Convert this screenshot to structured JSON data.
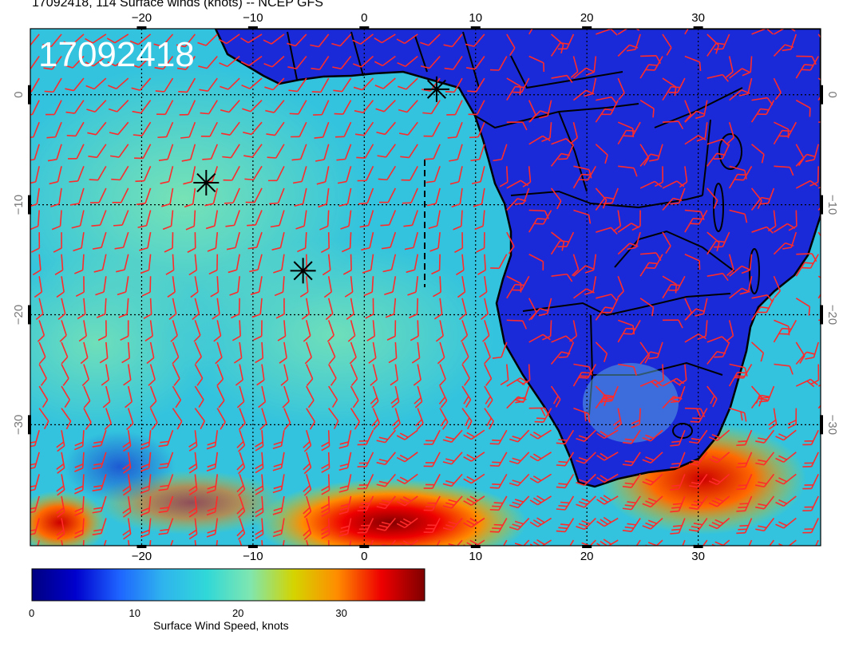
{
  "header": {
    "title": "17092418, 114 Surface winds (knots) -- NCEP GFS"
  },
  "map": {
    "timestamp_label": "17092418",
    "lon_range": [
      -30,
      41
    ],
    "lat_range": [
      -41,
      6
    ],
    "lon_ticks": [
      {
        "value": -20,
        "label": "−20"
      },
      {
        "value": -10,
        "label": "−10"
      },
      {
        "value": 0,
        "label": "0"
      },
      {
        "value": 10,
        "label": "10"
      },
      {
        "value": 20,
        "label": "20"
      },
      {
        "value": 30,
        "label": "30"
      }
    ],
    "lat_ticks": [
      {
        "value": 0,
        "label": "0"
      },
      {
        "value": -10,
        "label": "−10"
      },
      {
        "value": -20,
        "label": "−20"
      },
      {
        "value": -30,
        "label": "−30"
      }
    ],
    "barb_color": "#ff2a2a",
    "markers": [
      {
        "name": "star-marker",
        "lon": 6.5,
        "lat": 0.5
      },
      {
        "name": "star-marker",
        "lon": -14.2,
        "lat": -8.0
      },
      {
        "name": "star-marker",
        "lon": -5.5,
        "lat": -16.0
      }
    ],
    "gridlines": "dotted"
  },
  "colorbar": {
    "title": "Surface Wind Speed, knots",
    "min": 0,
    "max": 38,
    "ticks": [
      {
        "value": 0,
        "label": "0"
      },
      {
        "value": 10,
        "label": "10"
      },
      {
        "value": 20,
        "label": "20"
      },
      {
        "value": 30,
        "label": "30"
      }
    ],
    "colors": [
      "#000080",
      "#0000cd",
      "#1e64ff",
      "#2fb4ee",
      "#30d8d8",
      "#7fe6b0",
      "#d4d400",
      "#ff8c00",
      "#ee0000",
      "#800000"
    ]
  }
}
